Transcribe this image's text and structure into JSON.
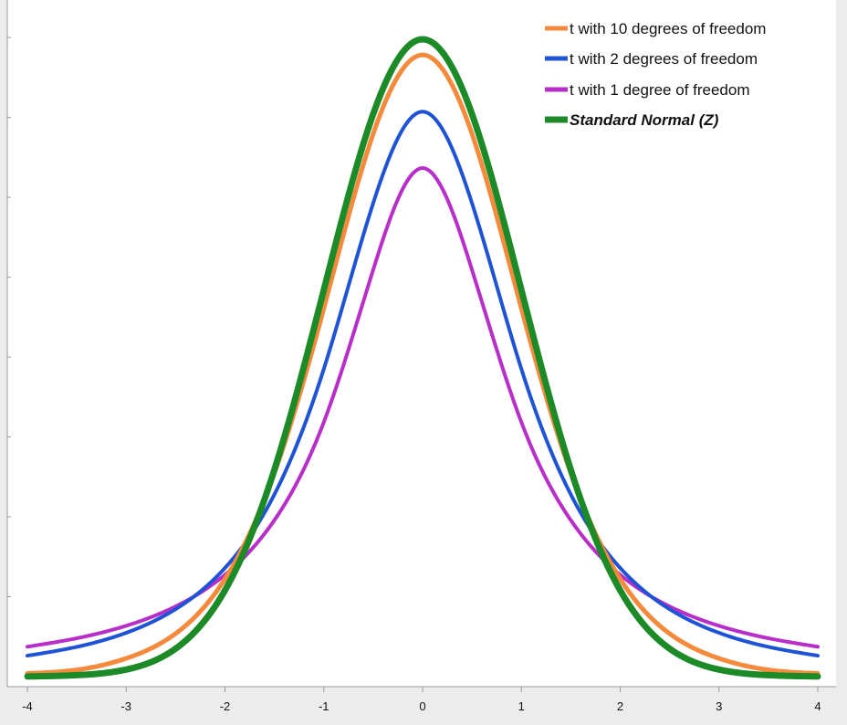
{
  "chart_data": {
    "type": "line",
    "title": "",
    "xlabel": "",
    "ylabel": "",
    "xlim": [
      -4,
      4
    ],
    "ylim": [
      0,
      0.41
    ],
    "grid": false,
    "legend_position": "top-right",
    "x_ticks": [
      -4,
      -3,
      -2,
      -1,
      0,
      1,
      2,
      3,
      4
    ],
    "x_tick_labels": [
      "-4",
      "-3",
      "-2",
      "-1",
      "0",
      "1",
      "2",
      "3",
      "4"
    ],
    "y_ticks": [
      0.05,
      0.1,
      0.15,
      0.2,
      0.25,
      0.3,
      0.35,
      0.4
    ],
    "x": [
      -4,
      -3.5,
      -3,
      -2.5,
      -2,
      -1.5,
      -1,
      -0.5,
      0,
      0.5,
      1,
      1.5,
      2,
      2.5,
      3,
      3.5,
      4
    ],
    "series": [
      {
        "name": "t with 10 degrees of freedom",
        "color": "#f58a3c",
        "values": [
          0.002,
          0.0042,
          0.0114,
          0.0269,
          0.0611,
          0.1274,
          0.2304,
          0.3397,
          0.3891,
          0.3397,
          0.2304,
          0.1274,
          0.0611,
          0.0269,
          0.0114,
          0.0042,
          0.002
        ]
      },
      {
        "name": "t with 2 degrees of freedom",
        "color": "#1f53d6",
        "values": [
          0.0131,
          0.0186,
          0.0274,
          0.0422,
          0.068,
          0.114,
          0.1925,
          0.2963,
          0.3536,
          0.2963,
          0.1925,
          0.114,
          0.068,
          0.0422,
          0.0274,
          0.0186,
          0.0131
        ]
      },
      {
        "name": "t with 1 degree of freedom",
        "color": "#b82ec8",
        "values": [
          0.0187,
          0.024,
          0.0318,
          0.0439,
          0.0637,
          0.0979,
          0.1592,
          0.2546,
          0.3183,
          0.2546,
          0.1592,
          0.0979,
          0.0637,
          0.0439,
          0.0318,
          0.024,
          0.0187
        ]
      },
      {
        "name": "Standard Normal (Z)",
        "color": "#1d8a28",
        "values": [
          0.0001,
          0.0009,
          0.0044,
          0.0175,
          0.054,
          0.1295,
          0.242,
          0.3521,
          0.3989,
          0.3521,
          0.242,
          0.1295,
          0.054,
          0.0175,
          0.0044,
          0.0009,
          0.0001
        ]
      }
    ]
  }
}
